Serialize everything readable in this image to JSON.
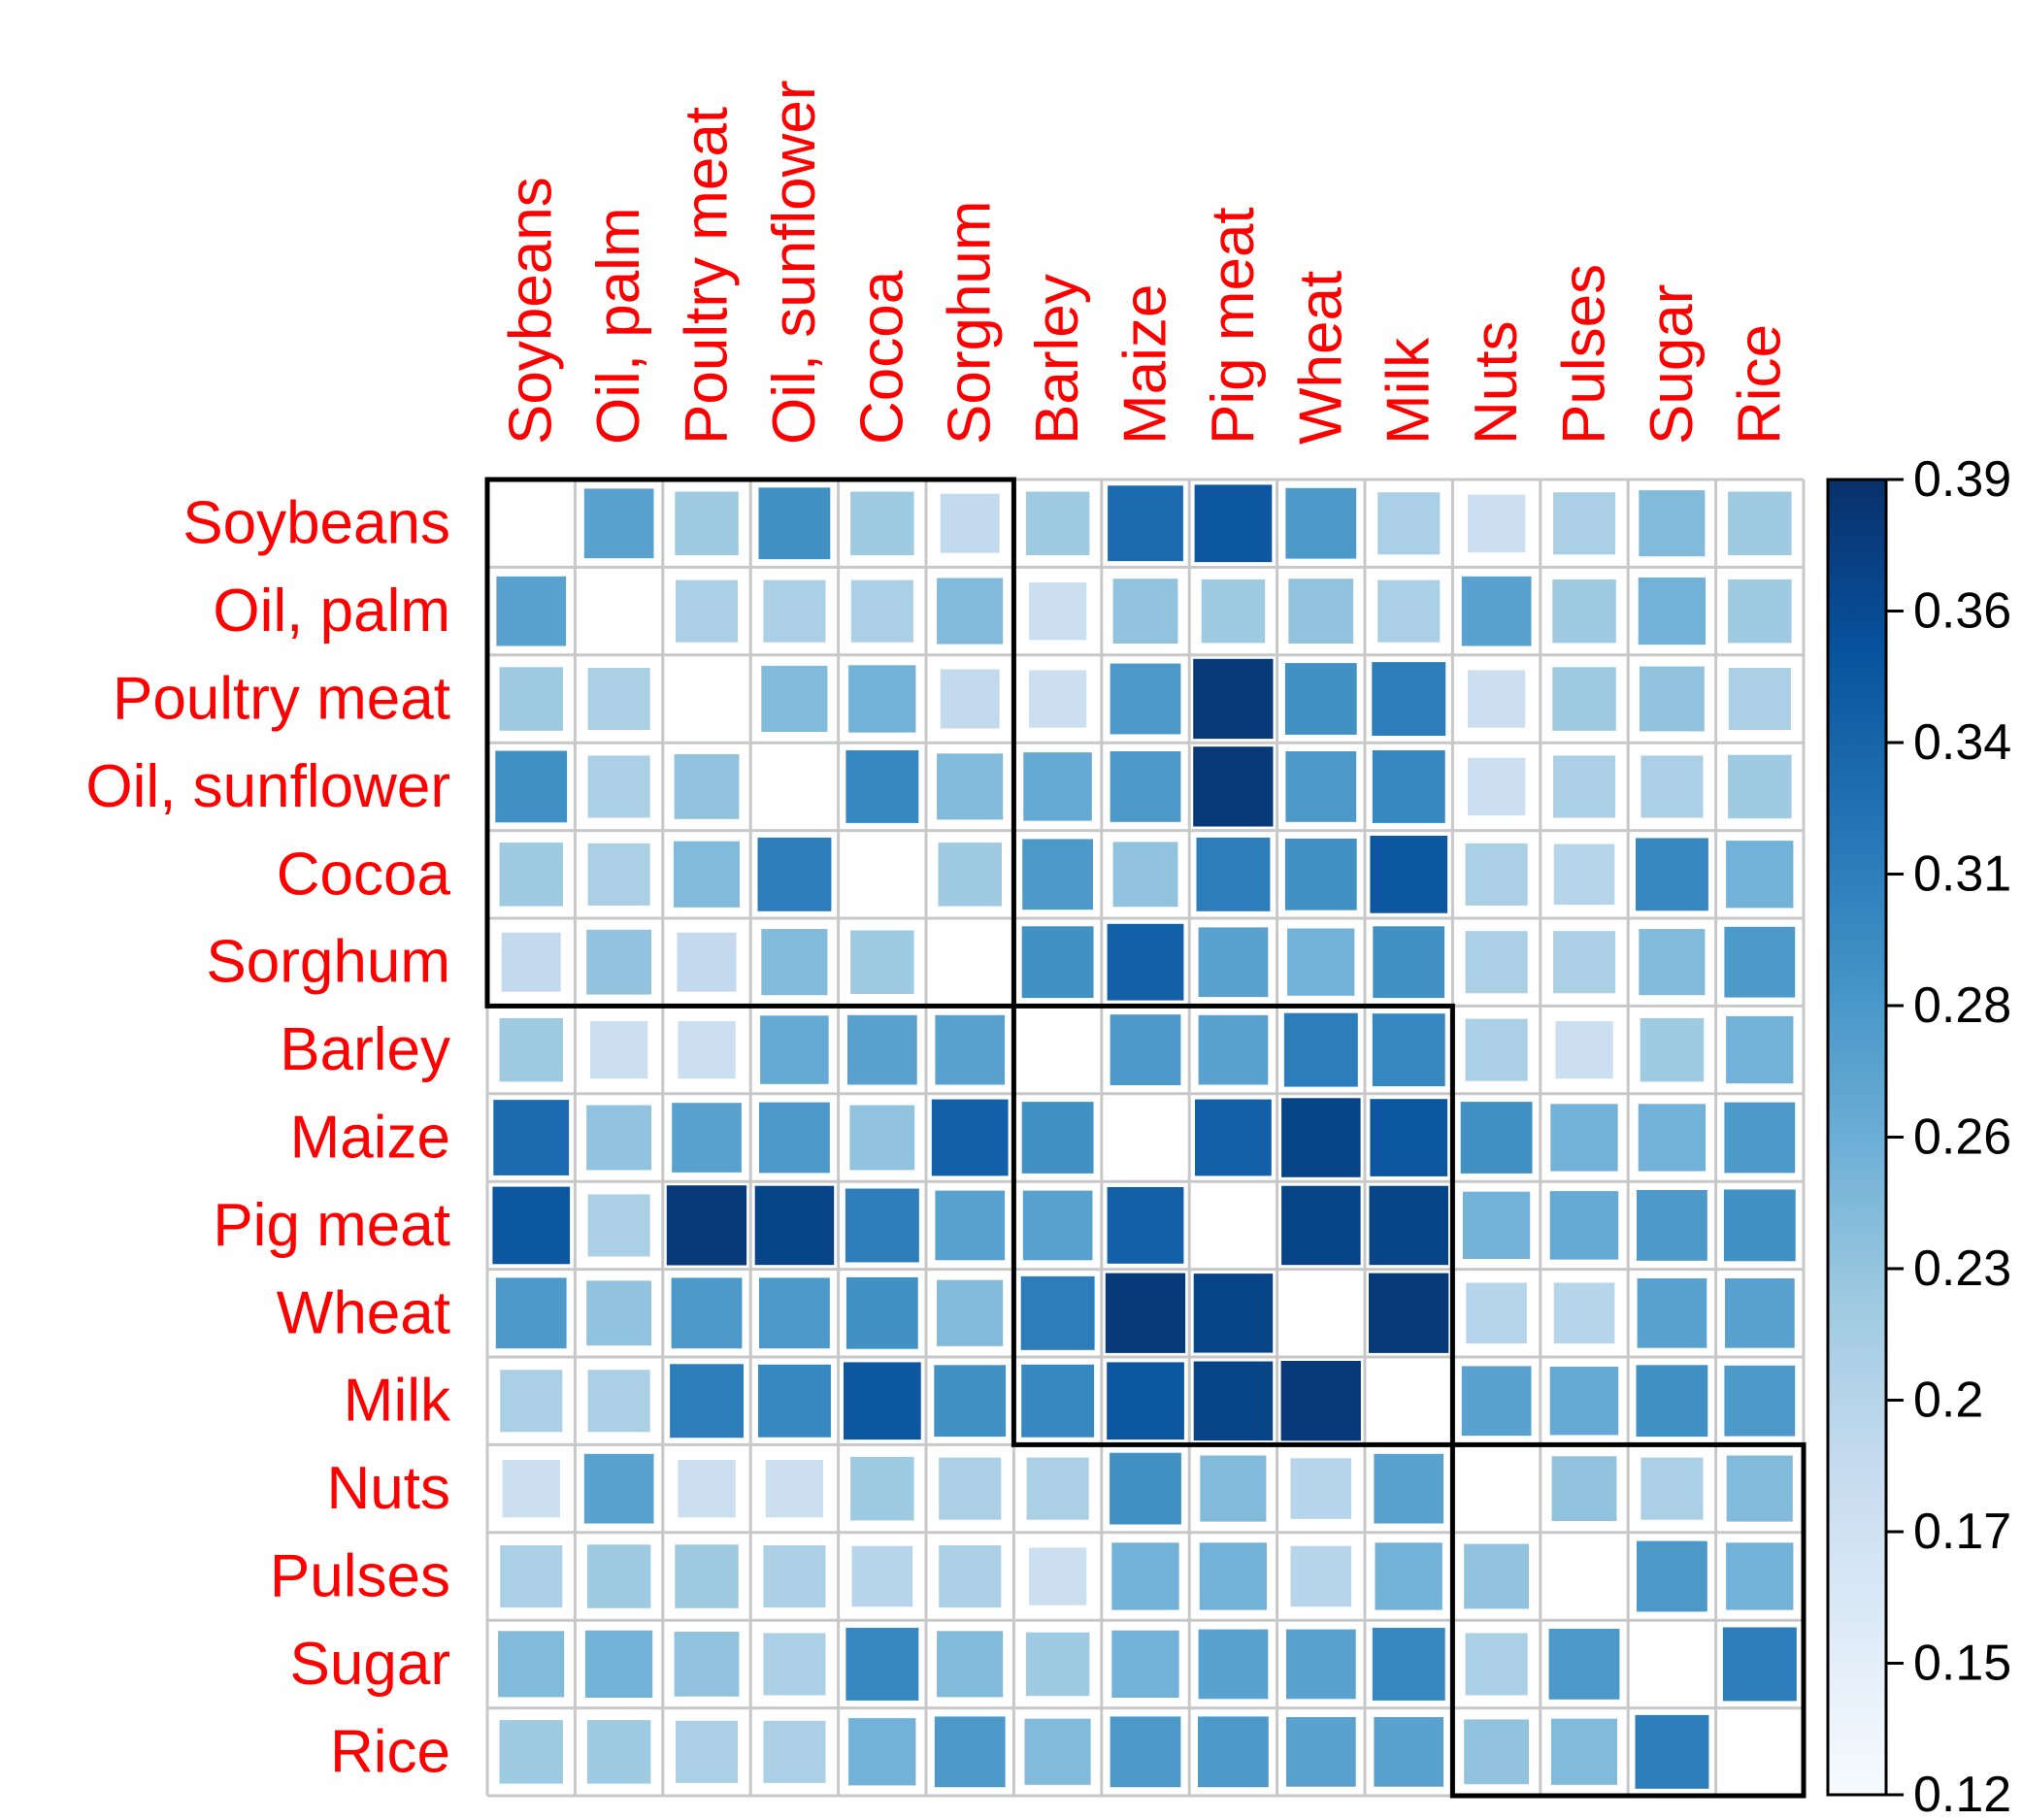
{
  "chart_data": {
    "type": "heatmap",
    "title": "",
    "xlabel": "",
    "ylabel": "",
    "label_color": "#ff0000",
    "categories": [
      "Soybeans",
      "Oil, palm",
      "Poultry meat",
      "Oil, sunflower",
      "Cocoa",
      "Sorghum",
      "Barley",
      "Maize",
      "Pig meat",
      "Wheat",
      "Milk",
      "Nuts",
      "Pulses",
      "Sugar",
      "Rice"
    ],
    "values": [
      [
        null,
        0.27,
        0.22,
        0.29,
        0.22,
        0.19,
        0.22,
        0.33,
        0.35,
        0.28,
        0.21,
        0.18,
        0.21,
        0.24,
        0.22
      ],
      [
        0.27,
        null,
        0.21,
        0.21,
        0.21,
        0.24,
        0.18,
        0.23,
        0.22,
        0.23,
        0.21,
        0.27,
        0.22,
        0.25,
        0.22
      ],
      [
        0.22,
        0.21,
        null,
        0.24,
        0.25,
        0.19,
        0.18,
        0.28,
        0.38,
        0.29,
        0.31,
        0.18,
        0.22,
        0.23,
        0.21
      ],
      [
        0.29,
        0.21,
        0.23,
        null,
        0.3,
        0.24,
        0.26,
        0.28,
        0.38,
        0.28,
        0.3,
        0.18,
        0.21,
        0.21,
        0.22
      ],
      [
        0.22,
        0.21,
        0.24,
        0.31,
        null,
        0.22,
        0.28,
        0.23,
        0.31,
        0.29,
        0.35,
        0.21,
        0.2,
        0.3,
        0.25
      ],
      [
        0.19,
        0.23,
        0.19,
        0.24,
        0.22,
        null,
        0.29,
        0.34,
        0.27,
        0.25,
        0.29,
        0.21,
        0.21,
        0.24,
        0.28
      ],
      [
        0.22,
        0.18,
        0.18,
        0.26,
        0.27,
        0.27,
        null,
        0.28,
        0.27,
        0.31,
        0.3,
        0.21,
        0.18,
        0.22,
        0.25
      ],
      [
        0.33,
        0.23,
        0.27,
        0.28,
        0.23,
        0.34,
        0.29,
        null,
        0.34,
        0.37,
        0.35,
        0.29,
        0.25,
        0.25,
        0.28
      ],
      [
        0.35,
        0.21,
        0.38,
        0.37,
        0.31,
        0.27,
        0.27,
        0.34,
        null,
        0.37,
        0.37,
        0.25,
        0.26,
        0.28,
        0.29
      ],
      [
        0.28,
        0.23,
        0.28,
        0.28,
        0.29,
        0.24,
        0.31,
        0.38,
        0.37,
        null,
        0.38,
        0.2,
        0.2,
        0.27,
        0.27
      ],
      [
        0.21,
        0.21,
        0.31,
        0.3,
        0.35,
        0.29,
        0.3,
        0.35,
        0.37,
        0.38,
        null,
        0.27,
        0.26,
        0.29,
        0.28
      ],
      [
        0.18,
        0.27,
        0.18,
        0.18,
        0.22,
        0.21,
        0.21,
        0.29,
        0.24,
        0.2,
        0.27,
        null,
        0.23,
        0.21,
        0.24
      ],
      [
        0.21,
        0.22,
        0.22,
        0.21,
        0.2,
        0.21,
        0.18,
        0.25,
        0.25,
        0.2,
        0.25,
        0.23,
        null,
        0.28,
        0.25
      ],
      [
        0.24,
        0.25,
        0.23,
        0.21,
        0.3,
        0.24,
        0.22,
        0.25,
        0.27,
        0.27,
        0.3,
        0.21,
        0.28,
        null,
        0.31
      ],
      [
        0.22,
        0.22,
        0.21,
        0.21,
        0.25,
        0.28,
        0.24,
        0.28,
        0.28,
        0.27,
        0.27,
        0.23,
        0.24,
        0.31,
        null
      ]
    ],
    "clusters": [
      [
        0,
        5
      ],
      [
        6,
        10
      ],
      [
        11,
        14
      ]
    ],
    "colorbar": {
      "min": 0.12,
      "max": 0.39,
      "ticks": [
        "0.39",
        "0.36",
        "0.34",
        "0.31",
        "0.28",
        "0.26",
        "0.23",
        "0.2",
        "0.17",
        "0.15",
        "0.12"
      ],
      "colors": [
        "#f7fbff",
        "#deebf7",
        "#c6dbef",
        "#9ecae1",
        "#6baed6",
        "#4292c6",
        "#2171b5",
        "#08519c",
        "#08306b"
      ]
    },
    "grid": true,
    "legend": "right"
  }
}
